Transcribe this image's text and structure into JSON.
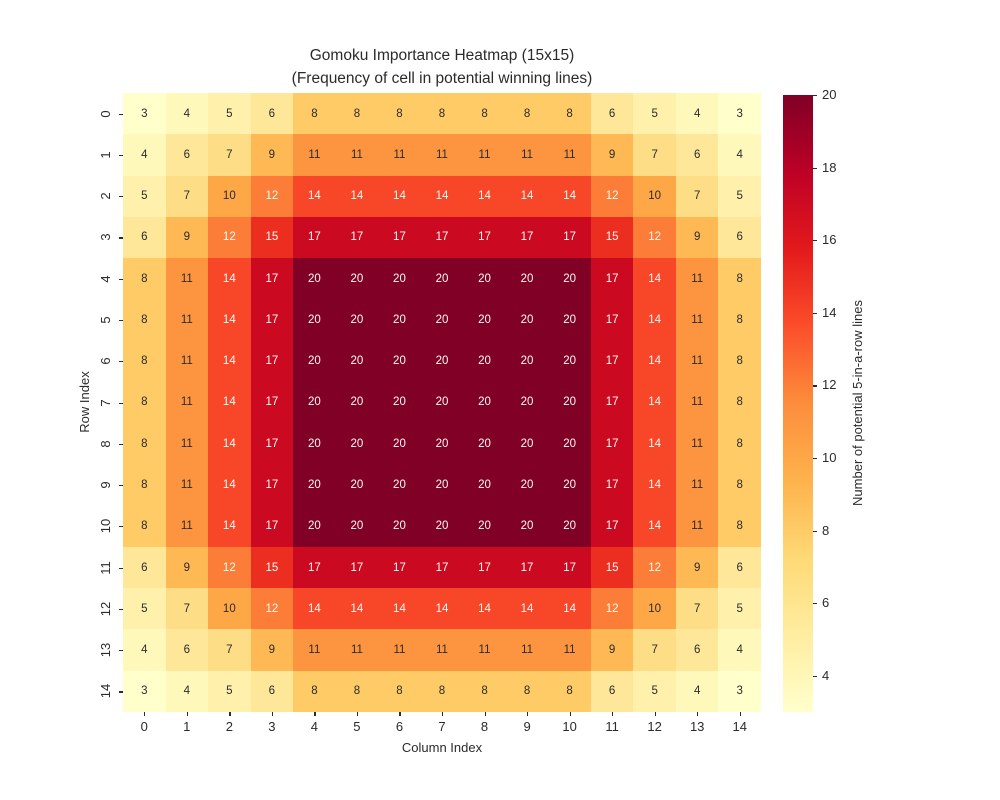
{
  "title": {
    "line1": "Gomoku Importance Heatmap (15x15)",
    "line2": "(Frequency of cell in potential winning lines)"
  },
  "chart_data": {
    "type": "heatmap",
    "title": "Gomoku Importance Heatmap (15x15)\n(Frequency of cell in potential winning lines)",
    "xlabel": "Column Index",
    "ylabel": "Row Index",
    "x_ticks": [
      "0",
      "1",
      "2",
      "3",
      "4",
      "5",
      "6",
      "7",
      "8",
      "9",
      "10",
      "11",
      "12",
      "13",
      "14"
    ],
    "y_ticks": [
      "0",
      "1",
      "2",
      "3",
      "4",
      "5",
      "6",
      "7",
      "8",
      "9",
      "10",
      "11",
      "12",
      "13",
      "14"
    ],
    "vmin": 3,
    "vmax": 20,
    "colormap": "YlOrRd",
    "grid": false,
    "annotated": true,
    "matrix": [
      [
        3,
        4,
        5,
        6,
        8,
        8,
        8,
        8,
        8,
        8,
        8,
        6,
        5,
        4,
        3
      ],
      [
        4,
        6,
        7,
        9,
        11,
        11,
        11,
        11,
        11,
        11,
        11,
        9,
        7,
        6,
        4
      ],
      [
        5,
        7,
        10,
        12,
        14,
        14,
        14,
        14,
        14,
        14,
        14,
        12,
        10,
        7,
        5
      ],
      [
        6,
        9,
        12,
        15,
        17,
        17,
        17,
        17,
        17,
        17,
        17,
        15,
        12,
        9,
        6
      ],
      [
        8,
        11,
        14,
        17,
        20,
        20,
        20,
        20,
        20,
        20,
        20,
        17,
        14,
        11,
        8
      ],
      [
        8,
        11,
        14,
        17,
        20,
        20,
        20,
        20,
        20,
        20,
        20,
        17,
        14,
        11,
        8
      ],
      [
        8,
        11,
        14,
        17,
        20,
        20,
        20,
        20,
        20,
        20,
        20,
        17,
        14,
        11,
        8
      ],
      [
        8,
        11,
        14,
        17,
        20,
        20,
        20,
        20,
        20,
        20,
        20,
        17,
        14,
        11,
        8
      ],
      [
        8,
        11,
        14,
        17,
        20,
        20,
        20,
        20,
        20,
        20,
        20,
        17,
        14,
        11,
        8
      ],
      [
        8,
        11,
        14,
        17,
        20,
        20,
        20,
        20,
        20,
        20,
        20,
        17,
        14,
        11,
        8
      ],
      [
        8,
        11,
        14,
        17,
        20,
        20,
        20,
        20,
        20,
        20,
        20,
        17,
        14,
        11,
        8
      ],
      [
        6,
        9,
        12,
        15,
        17,
        17,
        17,
        17,
        17,
        17,
        17,
        15,
        12,
        9,
        6
      ],
      [
        5,
        7,
        10,
        12,
        14,
        14,
        14,
        14,
        14,
        14,
        14,
        12,
        10,
        7,
        5
      ],
      [
        4,
        6,
        7,
        9,
        11,
        11,
        11,
        11,
        11,
        11,
        11,
        9,
        7,
        6,
        4
      ],
      [
        3,
        4,
        5,
        6,
        8,
        8,
        8,
        8,
        8,
        8,
        8,
        6,
        5,
        4,
        3
      ]
    ],
    "value_colors": {
      "3": "#ffffcc",
      "4": "#fff8bb",
      "5": "#fff1ab",
      "6": "#ffe79a",
      "7": "#fedd87",
      "8": "#fecb67",
      "9": "#feb954",
      "10": "#fea747",
      "11": "#fd9540",
      "12": "#fc7d37",
      "14": "#f84628",
      "15": "#ec2e21",
      "17": "#cb0a22",
      "20": "#800026"
    },
    "light_text_min_value": 12,
    "colors": {
      "dark_text": "#2b2b2b",
      "light_text": "#fdfbf5",
      "background": "#ffffff"
    },
    "colorbar": {
      "label": "Number of potential 5-in-a-row lines",
      "ticks": [
        4,
        6,
        8,
        10,
        12,
        14,
        16,
        18,
        20
      ],
      "min": 3,
      "max": 20,
      "gradient_stops": [
        "#ffffcc",
        "#ffeda0",
        "#fed976",
        "#feb24c",
        "#fd8d3c",
        "#fc4e2a",
        "#e31a1c",
        "#bd0026",
        "#800026"
      ],
      "position": "right"
    }
  }
}
